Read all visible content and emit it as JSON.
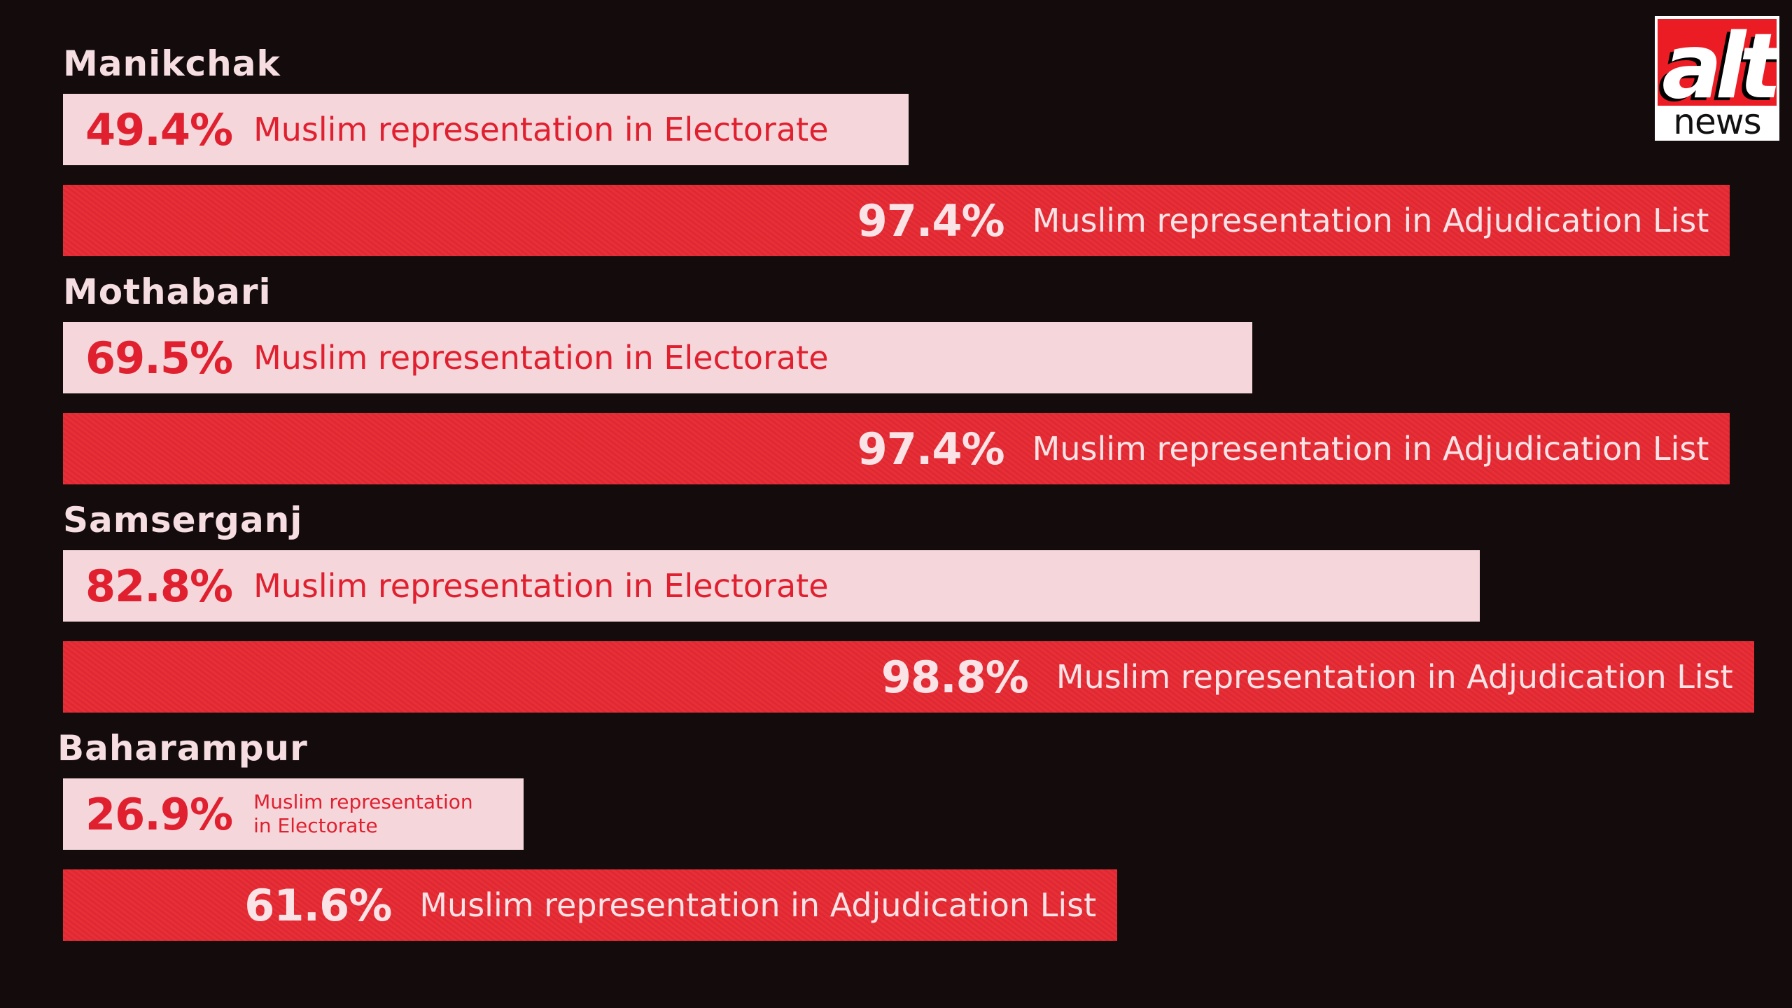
{
  "chart_data": {
    "type": "bar",
    "orientation": "horizontal",
    "categories": [
      "Manikchak",
      "Mothabari",
      "Samserganj",
      "Baharampur"
    ],
    "series": [
      {
        "name": "Muslim representation in Electorate",
        "values": [
          49.4,
          69.5,
          82.8,
          26.9
        ],
        "labels": [
          "49.4%",
          "69.5%",
          "82.8%",
          "26.9%"
        ],
        "color": "#f4d6db"
      },
      {
        "name": "Muslim representation in Adjudication List",
        "values": [
          97.4,
          97.4,
          98.8,
          61.6
        ],
        "labels": [
          "97.4%",
          "97.4%",
          "98.8%",
          "61.6%"
        ],
        "color": "#e42b35"
      }
    ],
    "bar_descriptions": {
      "electorate": "Muslim representation in Electorate",
      "electorate_wrapped": "Muslim representation\nin Electorate",
      "adjudication": "Muslim representation in Adjudication List"
    },
    "xlim": [
      0,
      100
    ],
    "grid": false,
    "legend": "none"
  },
  "logo": {
    "text_top": "alt",
    "text_bottom": "news",
    "color": "#ec1c24"
  },
  "background": "#130b0c"
}
